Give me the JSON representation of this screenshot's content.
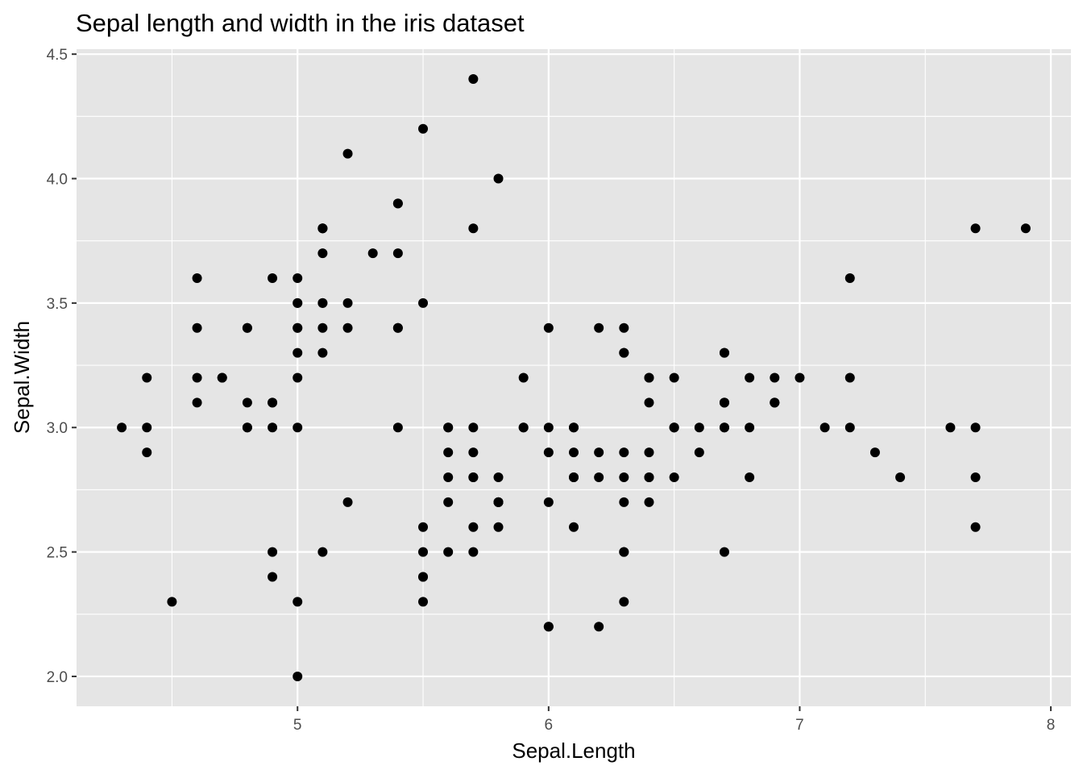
{
  "chart_data": {
    "type": "scatter",
    "title": "Sepal length and width in the iris dataset",
    "xlabel": "Sepal.Length",
    "ylabel": "Sepal.Width",
    "xlim": [
      4.12,
      8.08
    ],
    "ylim": [
      1.88,
      4.52
    ],
    "x_ticks": [
      5,
      6,
      7,
      8
    ],
    "x_tick_labels": [
      "5",
      "6",
      "7",
      "8"
    ],
    "y_ticks": [
      2.0,
      2.5,
      3.0,
      3.5,
      4.0,
      4.5
    ],
    "y_tick_labels": [
      "2.0",
      "2.5",
      "3.0",
      "3.5",
      "4.0",
      "4.5"
    ],
    "grid": true,
    "legend": "none",
    "colors": {
      "panel": "#e5e5e5",
      "grid": "#ffffff",
      "point": "#000000",
      "tick": "#333333"
    },
    "points": [
      [
        5.1,
        3.5
      ],
      [
        4.9,
        3.0
      ],
      [
        4.7,
        3.2
      ],
      [
        4.6,
        3.1
      ],
      [
        5.0,
        3.6
      ],
      [
        5.4,
        3.9
      ],
      [
        4.6,
        3.4
      ],
      [
        5.0,
        3.4
      ],
      [
        4.4,
        2.9
      ],
      [
        4.9,
        3.1
      ],
      [
        5.4,
        3.7
      ],
      [
        4.8,
        3.4
      ],
      [
        4.8,
        3.0
      ],
      [
        4.3,
        3.0
      ],
      [
        5.8,
        4.0
      ],
      [
        5.7,
        4.4
      ],
      [
        5.4,
        3.9
      ],
      [
        5.1,
        3.5
      ],
      [
        5.7,
        3.8
      ],
      [
        5.1,
        3.8
      ],
      [
        5.4,
        3.4
      ],
      [
        5.1,
        3.7
      ],
      [
        4.6,
        3.6
      ],
      [
        5.1,
        3.3
      ],
      [
        4.8,
        3.4
      ],
      [
        5.0,
        3.0
      ],
      [
        5.0,
        3.4
      ],
      [
        5.2,
        3.5
      ],
      [
        5.2,
        3.4
      ],
      [
        4.7,
        3.2
      ],
      [
        4.8,
        3.1
      ],
      [
        5.4,
        3.4
      ],
      [
        5.2,
        4.1
      ],
      [
        5.5,
        4.2
      ],
      [
        4.9,
        3.1
      ],
      [
        5.0,
        3.2
      ],
      [
        5.5,
        3.5
      ],
      [
        4.9,
        3.6
      ],
      [
        4.4,
        3.0
      ],
      [
        5.1,
        3.4
      ],
      [
        5.0,
        3.5
      ],
      [
        4.5,
        2.3
      ],
      [
        4.4,
        3.2
      ],
      [
        5.0,
        3.5
      ],
      [
        5.1,
        3.8
      ],
      [
        4.8,
        3.0
      ],
      [
        5.1,
        3.8
      ],
      [
        4.6,
        3.2
      ],
      [
        5.3,
        3.7
      ],
      [
        5.0,
        3.3
      ],
      [
        7.0,
        3.2
      ],
      [
        6.4,
        3.2
      ],
      [
        6.9,
        3.1
      ],
      [
        5.5,
        2.3
      ],
      [
        6.5,
        2.8
      ],
      [
        5.7,
        2.8
      ],
      [
        6.3,
        3.3
      ],
      [
        4.9,
        2.4
      ],
      [
        6.6,
        2.9
      ],
      [
        5.2,
        2.7
      ],
      [
        5.0,
        2.0
      ],
      [
        5.9,
        3.0
      ],
      [
        6.0,
        2.2
      ],
      [
        6.1,
        2.9
      ],
      [
        5.6,
        2.9
      ],
      [
        6.7,
        3.1
      ],
      [
        5.6,
        3.0
      ],
      [
        5.8,
        2.7
      ],
      [
        6.2,
        2.2
      ],
      [
        5.6,
        2.5
      ],
      [
        5.9,
        3.2
      ],
      [
        6.1,
        2.8
      ],
      [
        6.3,
        2.5
      ],
      [
        6.1,
        2.8
      ],
      [
        6.4,
        2.9
      ],
      [
        6.6,
        3.0
      ],
      [
        6.8,
        2.8
      ],
      [
        6.7,
        3.0
      ],
      [
        6.0,
        2.9
      ],
      [
        5.7,
        2.6
      ],
      [
        5.5,
        2.4
      ],
      [
        5.5,
        2.4
      ],
      [
        5.8,
        2.7
      ],
      [
        6.0,
        2.7
      ],
      [
        5.4,
        3.0
      ],
      [
        6.0,
        3.4
      ],
      [
        6.7,
        3.1
      ],
      [
        6.3,
        2.3
      ],
      [
        5.6,
        3.0
      ],
      [
        5.5,
        2.5
      ],
      [
        5.5,
        2.6
      ],
      [
        6.1,
        3.0
      ],
      [
        5.8,
        2.6
      ],
      [
        5.0,
        2.3
      ],
      [
        5.6,
        2.7
      ],
      [
        5.7,
        3.0
      ],
      [
        5.7,
        2.9
      ],
      [
        6.2,
        2.9
      ],
      [
        5.1,
        2.5
      ],
      [
        5.7,
        2.8
      ],
      [
        6.3,
        3.3
      ],
      [
        5.8,
        2.7
      ],
      [
        7.1,
        3.0
      ],
      [
        6.3,
        2.9
      ],
      [
        6.5,
        3.0
      ],
      [
        7.6,
        3.0
      ],
      [
        4.9,
        2.5
      ],
      [
        7.3,
        2.9
      ],
      [
        6.7,
        2.5
      ],
      [
        7.2,
        3.6
      ],
      [
        6.5,
        3.2
      ],
      [
        6.4,
        2.7
      ],
      [
        6.8,
        3.0
      ],
      [
        5.7,
        2.5
      ],
      [
        5.8,
        2.8
      ],
      [
        6.4,
        3.2
      ],
      [
        6.5,
        3.0
      ],
      [
        7.7,
        3.8
      ],
      [
        7.7,
        2.6
      ],
      [
        6.0,
        2.2
      ],
      [
        6.9,
        3.2
      ],
      [
        5.6,
        2.8
      ],
      [
        7.7,
        2.8
      ],
      [
        6.3,
        2.7
      ],
      [
        6.7,
        3.3
      ],
      [
        7.2,
        3.2
      ],
      [
        6.2,
        2.8
      ],
      [
        6.1,
        3.0
      ],
      [
        6.4,
        2.8
      ],
      [
        7.2,
        3.0
      ],
      [
        7.4,
        2.8
      ],
      [
        7.9,
        3.8
      ],
      [
        6.4,
        2.8
      ],
      [
        6.3,
        2.8
      ],
      [
        6.1,
        2.6
      ],
      [
        7.7,
        3.0
      ],
      [
        6.3,
        3.4
      ],
      [
        6.4,
        3.1
      ],
      [
        6.0,
        3.0
      ],
      [
        6.9,
        3.1
      ],
      [
        6.7,
        3.1
      ],
      [
        6.9,
        3.1
      ],
      [
        5.8,
        2.7
      ],
      [
        6.8,
        3.2
      ],
      [
        6.7,
        3.3
      ],
      [
        6.7,
        3.0
      ],
      [
        6.3,
        2.5
      ],
      [
        6.5,
        3.0
      ],
      [
        6.2,
        3.4
      ],
      [
        5.9,
        3.0
      ]
    ]
  }
}
